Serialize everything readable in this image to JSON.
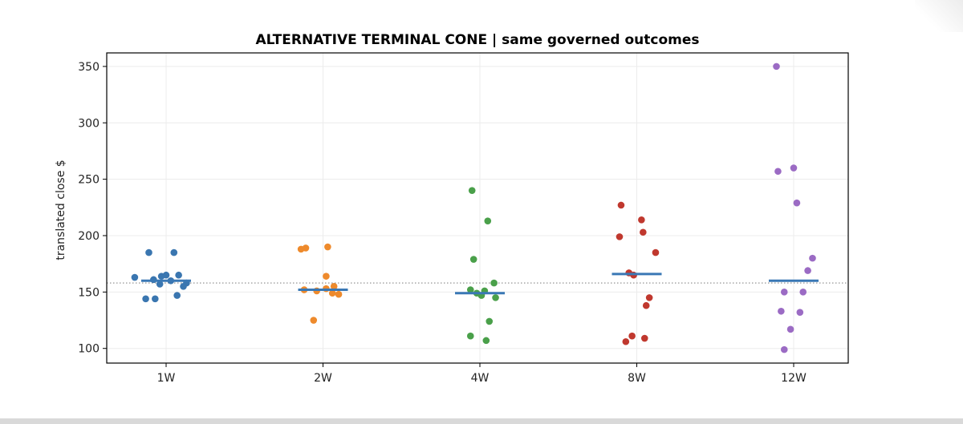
{
  "chart_data": {
    "type": "scatter",
    "title": "ALTERNATIVE TERMINAL CONE | same governed outcomes",
    "xlabel": "",
    "ylabel": "translated close $",
    "categories": [
      "1W",
      "2W",
      "4W",
      "8W",
      "12W"
    ],
    "ylim": [
      87,
      362
    ],
    "yticks": [
      100,
      150,
      200,
      250,
      300,
      350
    ],
    "grid": true,
    "reference_line": {
      "value": 158,
      "style": "dotted",
      "color": "#888888"
    },
    "median_color": "#3a78b5",
    "series": [
      {
        "category": "1W",
        "color": "#3a76b0",
        "median": 160,
        "points": [
          {
            "offset": -0.11,
            "y": 185
          },
          {
            "offset": 0.05,
            "y": 185
          },
          {
            "offset": -0.2,
            "y": 163
          },
          {
            "offset": -0.08,
            "y": 161
          },
          {
            "offset": -0.03,
            "y": 164
          },
          {
            "offset": 0.0,
            "y": 165
          },
          {
            "offset": 0.08,
            "y": 165
          },
          {
            "offset": 0.13,
            "y": 158
          },
          {
            "offset": 0.11,
            "y": 155
          },
          {
            "offset": 0.03,
            "y": 160
          },
          {
            "offset": -0.04,
            "y": 157
          },
          {
            "offset": -0.13,
            "y": 144
          },
          {
            "offset": -0.07,
            "y": 144
          },
          {
            "offset": 0.07,
            "y": 147
          }
        ]
      },
      {
        "category": "2W",
        "color": "#ee8a2c",
        "median": 152,
        "points": [
          {
            "offset": -0.14,
            "y": 188
          },
          {
            "offset": -0.11,
            "y": 189
          },
          {
            "offset": 0.03,
            "y": 190
          },
          {
            "offset": 0.02,
            "y": 164
          },
          {
            "offset": -0.12,
            "y": 152
          },
          {
            "offset": -0.04,
            "y": 151
          },
          {
            "offset": 0.02,
            "y": 153
          },
          {
            "offset": 0.07,
            "y": 155
          },
          {
            "offset": 0.06,
            "y": 149
          },
          {
            "offset": 0.1,
            "y": 148
          },
          {
            "offset": -0.06,
            "y": 125
          }
        ]
      },
      {
        "category": "4W",
        "color": "#4aa04a",
        "median": 149,
        "points": [
          {
            "offset": -0.05,
            "y": 240
          },
          {
            "offset": 0.05,
            "y": 213
          },
          {
            "offset": -0.04,
            "y": 179
          },
          {
            "offset": -0.06,
            "y": 152
          },
          {
            "offset": -0.02,
            "y": 149
          },
          {
            "offset": 0.01,
            "y": 147
          },
          {
            "offset": 0.03,
            "y": 151
          },
          {
            "offset": 0.09,
            "y": 158
          },
          {
            "offset": 0.1,
            "y": 145
          },
          {
            "offset": 0.06,
            "y": 124
          },
          {
            "offset": -0.06,
            "y": 111
          },
          {
            "offset": 0.04,
            "y": 107
          }
        ]
      },
      {
        "category": "8W",
        "color": "#c0382e",
        "median": 166,
        "points": [
          {
            "offset": -0.1,
            "y": 227
          },
          {
            "offset": 0.03,
            "y": 214
          },
          {
            "offset": 0.04,
            "y": 203
          },
          {
            "offset": -0.11,
            "y": 199
          },
          {
            "offset": 0.12,
            "y": 185
          },
          {
            "offset": -0.05,
            "y": 167
          },
          {
            "offset": -0.02,
            "y": 165
          },
          {
            "offset": 0.08,
            "y": 145
          },
          {
            "offset": 0.06,
            "y": 138
          },
          {
            "offset": -0.03,
            "y": 111
          },
          {
            "offset": 0.05,
            "y": 109
          },
          {
            "offset": -0.07,
            "y": 106
          }
        ]
      },
      {
        "category": "12W",
        "color": "#9b6bc4",
        "median": 160,
        "points": [
          {
            "offset": -0.11,
            "y": 350
          },
          {
            "offset": 0.0,
            "y": 260
          },
          {
            "offset": -0.1,
            "y": 257
          },
          {
            "offset": 0.02,
            "y": 229
          },
          {
            "offset": 0.12,
            "y": 180
          },
          {
            "offset": 0.09,
            "y": 169
          },
          {
            "offset": -0.06,
            "y": 150
          },
          {
            "offset": 0.06,
            "y": 150
          },
          {
            "offset": -0.08,
            "y": 133
          },
          {
            "offset": 0.04,
            "y": 132
          },
          {
            "offset": -0.02,
            "y": 117
          },
          {
            "offset": -0.06,
            "y": 99
          }
        ]
      }
    ]
  }
}
